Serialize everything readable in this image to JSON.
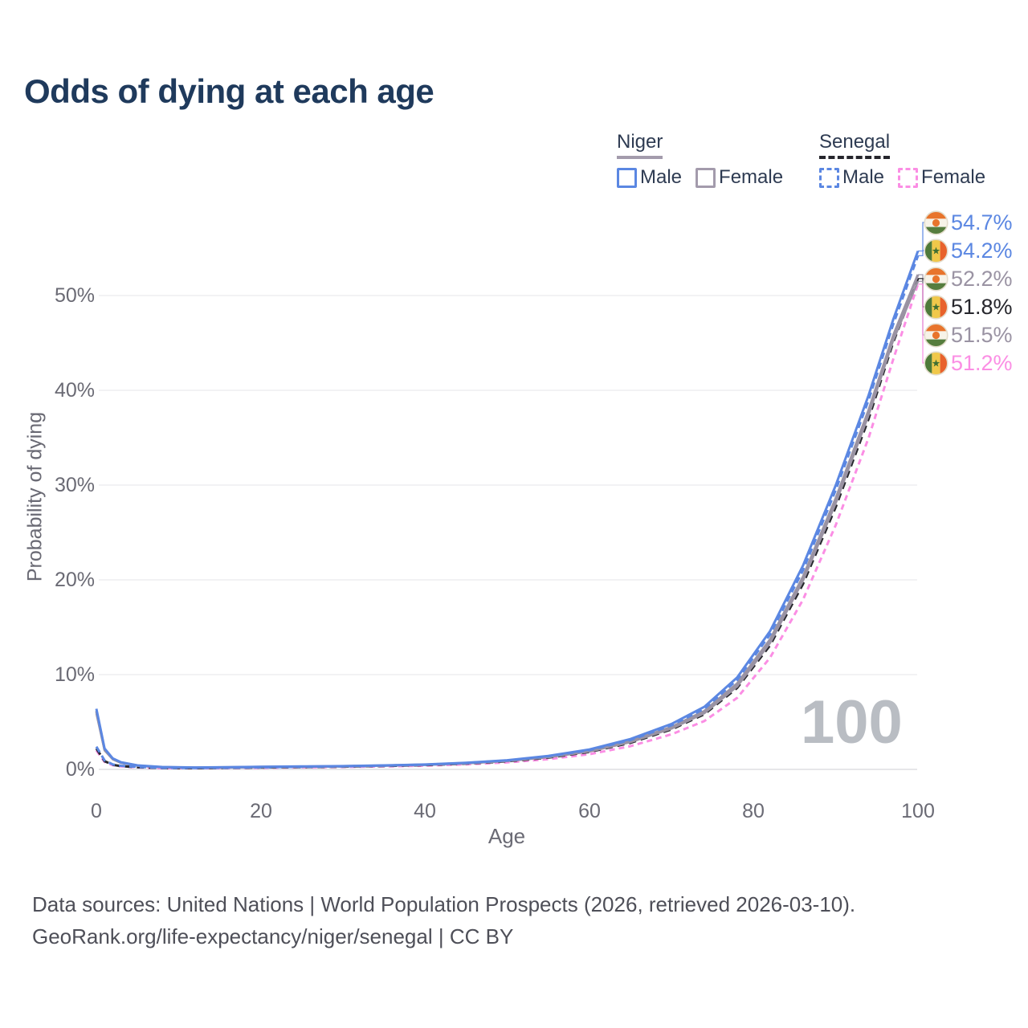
{
  "title": "Odds of dying at each age",
  "legend": {
    "niger": {
      "label": "Niger",
      "male": "Male",
      "female": "Female"
    },
    "senegal": {
      "label": "Senegal",
      "male": "Male",
      "female": "Female"
    }
  },
  "watermark": "100",
  "footer": {
    "line1": "Data sources: United Nations | World Population Prospects (2026, retrieved 2026-03-10).",
    "line2": "GeoRank.org/life-expectancy/niger/senegal | CC BY"
  },
  "colors": {
    "title": "#1f3a5c",
    "male_blue": "#5b87e2",
    "niger_gray": "#9a93a3",
    "senegal_black": "#26262c",
    "female_pink": "#fb8ee4",
    "axis_text": "#6a6a74",
    "grid": "#ebebee",
    "grid_zero": "#d7d7dc",
    "watermark": "#b9bdc3"
  },
  "chart_data": {
    "type": "line",
    "title": "Odds of dying at each age",
    "xlabel": "Age",
    "ylabel": "Probability of dying",
    "xlim": [
      0,
      100
    ],
    "ylim_pct": [
      0,
      55
    ],
    "grid": "horizontal-only",
    "legend_position": "top-right",
    "x_ticks": [
      0,
      20,
      40,
      60,
      80,
      100
    ],
    "x_tick_labels": [
      "0",
      "20",
      "40",
      "60",
      "80",
      "100"
    ],
    "y_ticks": [
      "0%",
      "10%",
      "20%",
      "30%",
      "40%",
      "50%"
    ],
    "y_grid_pcts": [
      0,
      10,
      20,
      30,
      40,
      50
    ],
    "ages": [
      0,
      1,
      2,
      3,
      5,
      8,
      12,
      16,
      20,
      25,
      30,
      35,
      40,
      45,
      50,
      55,
      60,
      65,
      70,
      74,
      78,
      82,
      86,
      90,
      94,
      97,
      100
    ],
    "series": [
      {
        "name": "Senegal Female",
        "country": "senegal",
        "sex": "female",
        "color": "#fb8ee4",
        "dash": "7 5",
        "width": 3,
        "values": [
          2.0,
          0.8,
          0.44,
          0.31,
          0.21,
          0.13,
          0.12,
          0.14,
          0.17,
          0.21,
          0.25,
          0.31,
          0.39,
          0.53,
          0.74,
          1.08,
          1.6,
          2.45,
          3.7,
          5.1,
          7.55,
          11.8,
          17.9,
          25.8,
          35.0,
          43.3,
          51.2
        ],
        "end_value": "51.2%"
      },
      {
        "name": "Senegal (both sexes)",
        "country": "senegal",
        "sex": "both",
        "color": "#26262c",
        "dash": "9 6",
        "width": 3,
        "values": [
          2.2,
          0.87,
          0.48,
          0.34,
          0.23,
          0.15,
          0.13,
          0.16,
          0.2,
          0.24,
          0.29,
          0.36,
          0.45,
          0.61,
          0.85,
          1.24,
          1.84,
          2.8,
          4.22,
          5.82,
          8.6,
          13.1,
          19.55,
          27.7,
          37.0,
          45.1,
          51.8
        ],
        "end_value": "51.8%"
      },
      {
        "name": "Niger Female",
        "country": "niger",
        "sex": "female",
        "color": "#9a93a3",
        "dash": null,
        "width": 2.6,
        "values": [
          5.9,
          2.0,
          1.05,
          0.68,
          0.38,
          0.22,
          0.18,
          0.2,
          0.24,
          0.27,
          0.31,
          0.38,
          0.47,
          0.63,
          0.87,
          1.27,
          1.88,
          2.87,
          4.3,
          5.92,
          8.75,
          13.35,
          19.9,
          28.1,
          37.4,
          45.3,
          51.5
        ],
        "end_value": "51.5%"
      },
      {
        "name": "Niger (both sexes)",
        "country": "niger",
        "sex": "both",
        "color": "#9a93a3",
        "dash": null,
        "width": 3.2,
        "values": [
          6.15,
          2.1,
          1.1,
          0.71,
          0.4,
          0.23,
          0.19,
          0.21,
          0.25,
          0.29,
          0.33,
          0.4,
          0.49,
          0.66,
          0.91,
          1.33,
          1.96,
          2.98,
          4.47,
          6.15,
          9.05,
          13.7,
          20.3,
          28.6,
          37.9,
          45.8,
          52.2
        ],
        "end_value": "52.2%"
      },
      {
        "name": "Senegal Male",
        "country": "senegal",
        "sex": "male",
        "color": "#5b87e2",
        "dash": "8 5",
        "width": 3,
        "values": [
          2.4,
          0.95,
          0.52,
          0.38,
          0.26,
          0.17,
          0.15,
          0.18,
          0.22,
          0.27,
          0.32,
          0.4,
          0.5,
          0.68,
          0.94,
          1.38,
          2.03,
          3.1,
          4.65,
          6.4,
          9.45,
          14.25,
          21.0,
          29.5,
          39.0,
          47.0,
          54.2
        ],
        "end_value": "54.2%"
      },
      {
        "name": "Niger Male",
        "country": "niger",
        "sex": "male",
        "color": "#5b87e2",
        "dash": null,
        "width": 3,
        "values": [
          6.4,
          2.2,
          1.15,
          0.75,
          0.42,
          0.25,
          0.2,
          0.23,
          0.27,
          0.31,
          0.35,
          0.42,
          0.52,
          0.7,
          0.97,
          1.42,
          2.1,
          3.2,
          4.8,
          6.6,
          9.7,
          14.6,
          21.5,
          30.0,
          39.5,
          47.5,
          54.7
        ],
        "end_value": "54.7%"
      }
    ],
    "end_labels": [
      {
        "flag": "niger",
        "series": "Niger Male",
        "value": "54.7%",
        "value_num": 54.7,
        "color": "#5b87e2"
      },
      {
        "flag": "senegal",
        "series": "Senegal Male",
        "value": "54.2%",
        "value_num": 54.2,
        "color": "#5b87e2"
      },
      {
        "flag": "niger",
        "series": "Niger (both sexes)",
        "value": "52.2%",
        "value_num": 52.2,
        "color": "#9a93a3"
      },
      {
        "flag": "senegal",
        "series": "Senegal (both sexes)",
        "value": "51.8%",
        "value_num": 51.8,
        "color": "#26262c"
      },
      {
        "flag": "niger",
        "series": "Niger Female",
        "value": "51.5%",
        "value_num": 51.5,
        "color": "#9a93a3"
      },
      {
        "flag": "senegal",
        "series": "Senegal Female",
        "value": "51.2%",
        "value_num": 51.2,
        "color": "#fb8ee4"
      }
    ]
  }
}
